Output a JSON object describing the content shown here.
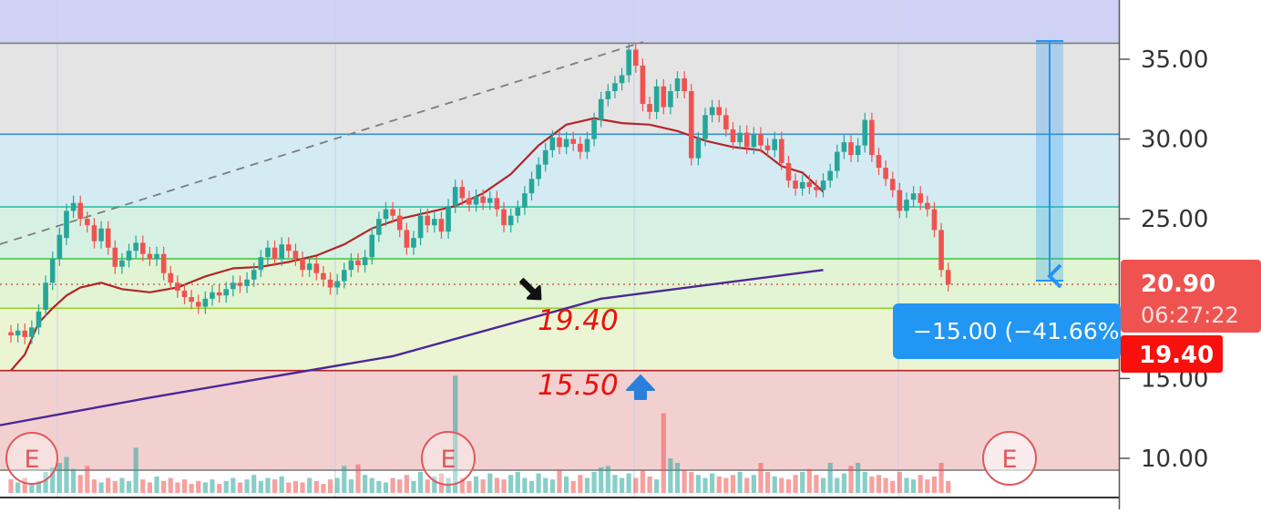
{
  "colors": {
    "up": "#26a69a",
    "down": "#ef5350",
    "ma_short": "#b2262a",
    "ma_long": "#4a2896",
    "measure": "#2196f3",
    "label_red": "#e8120c",
    "label_blue": "#2a7fdc",
    "zone_top": "#d0d2f5",
    "zone_grey": "#e4e4e4",
    "zone_blue": "#d4ebf3",
    "zone_teal": "#d6f1e4",
    "zone_green": "#e1f4d3",
    "zone_yellow": "#ecf5d3",
    "zone_red": "#f3d0d0"
  },
  "price_axis": {
    "ticks": [
      "35.00",
      "30.00",
      "25.00",
      "15.00",
      "10.00"
    ]
  },
  "price_tags": {
    "current_price": "20.90",
    "countdown": "06:27:22",
    "support_price": "19.40"
  },
  "measure": {
    "label": "−15.00 (−41.66%)"
  },
  "annotations": {
    "level_1": "19.40",
    "level_2": "15.50",
    "earnings_marker": "E"
  },
  "chart_data": {
    "type": "candlestick",
    "y_axis": {
      "min": 8,
      "max": 38
    },
    "levels": [
      36.0,
      30.3,
      25.75,
      22.5,
      20.9,
      19.4,
      15.5
    ],
    "moving_average_short_anchors": [
      [
        0,
        15.5
      ],
      [
        2,
        16.5
      ],
      [
        4,
        18.5
      ],
      [
        6,
        19.4
      ],
      [
        8,
        20.2
      ],
      [
        10,
        20.7
      ],
      [
        13,
        21.0
      ],
      [
        16,
        20.6
      ],
      [
        20,
        20.4
      ],
      [
        24,
        20.7
      ],
      [
        28,
        21.4
      ],
      [
        32,
        21.9
      ],
      [
        36,
        22.0
      ],
      [
        40,
        22.3
      ],
      [
        44,
        22.7
      ],
      [
        48,
        23.4
      ],
      [
        52,
        24.4
      ],
      [
        56,
        25.0
      ],
      [
        60,
        25.4
      ],
      [
        64,
        25.8
      ],
      [
        68,
        26.6
      ],
      [
        72,
        27.8
      ],
      [
        76,
        29.6
      ],
      [
        80,
        30.9
      ],
      [
        84,
        31.3
      ],
      [
        88,
        31.0
      ],
      [
        92,
        30.9
      ],
      [
        96,
        30.5
      ],
      [
        100,
        29.9
      ],
      [
        104,
        29.5
      ],
      [
        108,
        29.3
      ],
      [
        111,
        28.3
      ],
      [
        114,
        27.9
      ],
      [
        117,
        26.7
      ]
    ],
    "moving_average_long_anchors": [
      [
        -5,
        11.8
      ],
      [
        20,
        13.8
      ],
      [
        55,
        16.4
      ],
      [
        85,
        20.0
      ],
      [
        117,
        21.8
      ]
    ],
    "candles": [
      [
        0,
        17.9,
        17.7
      ],
      [
        1,
        17.7,
        18.0
      ],
      [
        2,
        18.0,
        17.6
      ],
      [
        3,
        17.6,
        18.2
      ],
      [
        4,
        18.2,
        19.2
      ],
      [
        5,
        19.3,
        21.0
      ],
      [
        6,
        21.0,
        22.5
      ],
      [
        7,
        22.5,
        24.0
      ],
      [
        8,
        23.8,
        25.5
      ],
      [
        9,
        25.5,
        26.0
      ],
      [
        10,
        26.0,
        25.0
      ],
      [
        11,
        25.0,
        24.6
      ],
      [
        12,
        24.6,
        23.6
      ],
      [
        13,
        23.6,
        24.4
      ],
      [
        14,
        24.4,
        23.2
      ],
      [
        15,
        23.2,
        22.0
      ],
      [
        16,
        22.0,
        22.4
      ],
      [
        17,
        22.4,
        23.0
      ],
      [
        18,
        23.0,
        23.5
      ],
      [
        19,
        23.5,
        22.8
      ],
      [
        20,
        22.8,
        22.5
      ],
      [
        21,
        22.5,
        22.8
      ],
      [
        22,
        22.8,
        21.6
      ],
      [
        23,
        21.6,
        21.0
      ],
      [
        24,
        21.0,
        20.5
      ],
      [
        25,
        20.5,
        20.1
      ],
      [
        26,
        20.1,
        19.8
      ],
      [
        27,
        19.8,
        19.5
      ],
      [
        28,
        19.5,
        20.0
      ],
      [
        29,
        20.0,
        20.4
      ],
      [
        30,
        20.4,
        20.2
      ],
      [
        31,
        20.2,
        20.6
      ],
      [
        32,
        20.6,
        21.0
      ],
      [
        33,
        21.0,
        20.8
      ],
      [
        34,
        20.8,
        21.2
      ],
      [
        35,
        21.2,
        21.8
      ],
      [
        36,
        21.8,
        22.6
      ],
      [
        37,
        22.6,
        23.2
      ],
      [
        38,
        23.2,
        22.5
      ],
      [
        39,
        22.5,
        23.4
      ],
      [
        40,
        23.4,
        23.0
      ],
      [
        41,
        23.0,
        22.5
      ],
      [
        42,
        22.5,
        21.8
      ],
      [
        43,
        21.8,
        22.2
      ],
      [
        44,
        22.2,
        21.6
      ],
      [
        45,
        21.6,
        21.2
      ],
      [
        46,
        21.2,
        20.7
      ],
      [
        47,
        20.7,
        21.1
      ],
      [
        48,
        21.1,
        21.8
      ],
      [
        49,
        21.8,
        22.4
      ],
      [
        50,
        22.4,
        22.1
      ],
      [
        51,
        22.1,
        22.6
      ],
      [
        52,
        22.6,
        24.0
      ],
      [
        53,
        24.0,
        25.0
      ],
      [
        54,
        25.0,
        25.6
      ],
      [
        55,
        25.6,
        25.2
      ],
      [
        56,
        25.2,
        24.3
      ],
      [
        57,
        24.3,
        23.2
      ],
      [
        58,
        23.2,
        23.8
      ],
      [
        59,
        23.8,
        25.2
      ],
      [
        60,
        25.2,
        24.6
      ],
      [
        61,
        24.6,
        25.0
      ],
      [
        62,
        25.0,
        24.2
      ],
      [
        63,
        24.2,
        25.8
      ],
      [
        64,
        25.8,
        27.0
      ],
      [
        65,
        27.0,
        26.3
      ],
      [
        66,
        26.3,
        25.9
      ],
      [
        67,
        25.9,
        26.4
      ],
      [
        68,
        26.4,
        26.0
      ],
      [
        69,
        26.0,
        26.3
      ],
      [
        70,
        26.3,
        25.6
      ],
      [
        71,
        25.6,
        24.6
      ],
      [
        72,
        24.6,
        25.2
      ],
      [
        73,
        25.2,
        25.7
      ],
      [
        74,
        25.7,
        26.6
      ],
      [
        75,
        26.6,
        27.5
      ],
      [
        76,
        27.5,
        28.4
      ],
      [
        77,
        28.4,
        29.3
      ],
      [
        78,
        29.3,
        30.1
      ],
      [
        79,
        30.1,
        29.5
      ],
      [
        80,
        29.5,
        30.0
      ],
      [
        81,
        30.0,
        29.7
      ],
      [
        82,
        29.7,
        29.2
      ],
      [
        83,
        29.2,
        30.0
      ],
      [
        84,
        30.0,
        31.2
      ],
      [
        85,
        31.2,
        32.5
      ],
      [
        86,
        32.5,
        33.0
      ],
      [
        87,
        33.0,
        33.5
      ],
      [
        88,
        33.5,
        34.0
      ],
      [
        89,
        34.0,
        35.6
      ],
      [
        90,
        35.6,
        34.6
      ],
      [
        91,
        34.6,
        32.2
      ],
      [
        92,
        32.2,
        31.7
      ],
      [
        93,
        31.7,
        33.3
      ],
      [
        94,
        33.3,
        32.0
      ],
      [
        95,
        32.0,
        33.0
      ],
      [
        96,
        33.0,
        33.8
      ],
      [
        97,
        33.8,
        33.0
      ],
      [
        98,
        33.0,
        28.8
      ],
      [
        99,
        28.8,
        30.0
      ],
      [
        100,
        30.0,
        31.5
      ],
      [
        101,
        31.5,
        32.0
      ],
      [
        102,
        32.0,
        31.5
      ],
      [
        103,
        31.5,
        30.6
      ],
      [
        104,
        30.6,
        29.8
      ],
      [
        105,
        29.8,
        30.4
      ],
      [
        106,
        30.4,
        29.5
      ],
      [
        107,
        29.5,
        30.3
      ],
      [
        108,
        30.3,
        29.6
      ],
      [
        109,
        29.6,
        29.3
      ],
      [
        110,
        29.3,
        30.0
      ],
      [
        111,
        30.0,
        28.5
      ],
      [
        112,
        28.5,
        27.4
      ],
      [
        113,
        27.4,
        26.9
      ],
      [
        114,
        26.9,
        27.3
      ],
      [
        115,
        27.3,
        27.0
      ],
      [
        116,
        27.0,
        26.8
      ],
      [
        117,
        26.8,
        27.4
      ],
      [
        118,
        27.4,
        28.0
      ],
      [
        119,
        28.0,
        29.2
      ],
      [
        120,
        29.2,
        29.8
      ],
      [
        121,
        29.8,
        29.0
      ],
      [
        122,
        29.0,
        29.6
      ],
      [
        123,
        29.6,
        31.2
      ],
      [
        124,
        31.2,
        29.0
      ],
      [
        125,
        29.0,
        28.2
      ],
      [
        126,
        28.2,
        27.5
      ],
      [
        127,
        27.5,
        26.8
      ],
      [
        128,
        26.8,
        25.5
      ],
      [
        129,
        25.5,
        26.2
      ],
      [
        130,
        26.2,
        26.6
      ],
      [
        131,
        26.6,
        26.0
      ],
      [
        132,
        26.0,
        25.6
      ],
      [
        133,
        25.6,
        24.3
      ],
      [
        134,
        24.3,
        21.8
      ],
      [
        135,
        21.8,
        20.9
      ]
    ],
    "volume": [
      0.9,
      0.7,
      1.0,
      0.6,
      0.8,
      1.4,
      1.7,
      2.0,
      2.4,
      1.6,
      1.2,
      1.8,
      0.9,
      0.7,
      1.0,
      0.8,
      1.0,
      0.8,
      3.0,
      0.9,
      0.7,
      1.1,
      0.8,
      1.0,
      0.7,
      0.9,
      0.6,
      0.8,
      0.7,
      0.9,
      0.6,
      0.8,
      1.0,
      0.7,
      0.9,
      1.2,
      0.8,
      1.0,
      0.9,
      1.1,
      0.7,
      0.8,
      0.7,
      1.0,
      0.8,
      0.6,
      0.9,
      1.0,
      1.8,
      0.9,
      1.9,
      1.2,
      1.0,
      0.8,
      0.7,
      1.0,
      0.9,
      1.2,
      0.8,
      1.4,
      0.9,
      1.1,
      1.3,
      1.0,
      7.8,
      1.0,
      0.8,
      1.1,
      0.9,
      1.3,
      1.0,
      0.9,
      1.2,
      1.4,
      1.0,
      0.8,
      1.3,
      1.0,
      0.9,
      1.5,
      1.1,
      0.8,
      1.2,
      1.0,
      1.4,
      1.7,
      1.8,
      1.2,
      1.0,
      1.3,
      1.0,
      1.5,
      1.1,
      0.9,
      5.3,
      2.3,
      2.0,
      1.5,
      1.4,
      1.2,
      1.0,
      1.3,
      1.1,
      1.0,
      1.2,
      1.4,
      1.0,
      1.2,
      2.0,
      1.4,
      1.1,
      1.0,
      0.9,
      1.2,
      1.4,
      1.6,
      1.2,
      1.0,
      2.0,
      1.0,
      1.3,
      1.8,
      2.0,
      1.4,
      1.1,
      1.2,
      1.0,
      0.8,
      1.4,
      1.0,
      0.9,
      1.2,
      0.9,
      1.1,
      2.0,
      0.8
    ]
  }
}
